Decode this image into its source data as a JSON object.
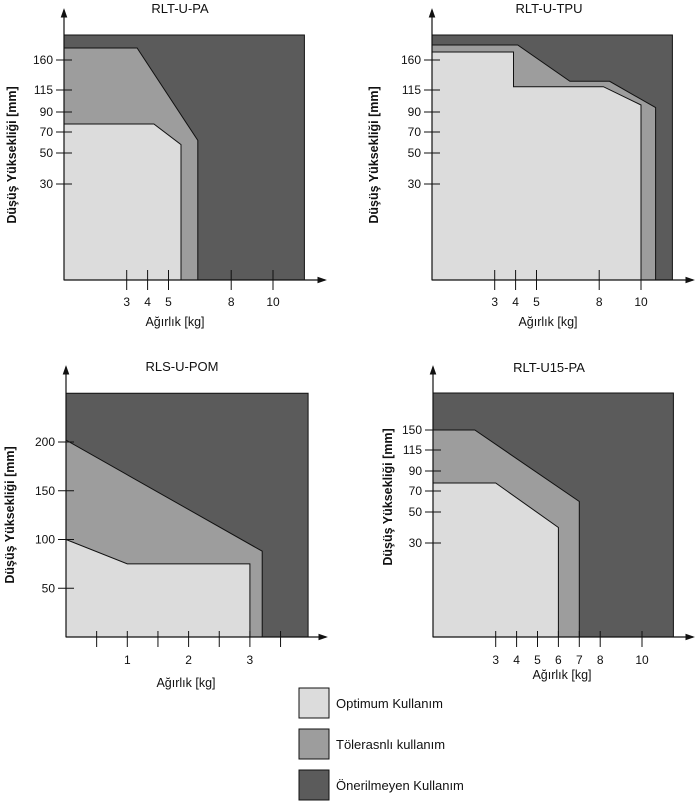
{
  "colors": {
    "optimum": "#dcdcdc",
    "tolerance": "#9d9d9d",
    "not_recommended": "#5b5b5b",
    "line": "#111111"
  },
  "legend": [
    {
      "label": "Optimum Kullanım",
      "zone": "optimum"
    },
    {
      "label": "Tölerasnlı kullanım",
      "zone": "tolerance"
    },
    {
      "label": "Önerilmeyen Kullanım",
      "zone": "not_recommended"
    }
  ],
  "chart_data": [
    {
      "type": "area",
      "title": "RLT-U-PA",
      "xlabel": "Ağırlık [kg]",
      "ylabel": "Düşüş Yüksekliği [mm]",
      "x_ticks": [
        3,
        4,
        5,
        8,
        10
      ],
      "y_ticks": [
        30,
        50,
        70,
        90,
        115,
        160
      ],
      "zones": {
        "optimum": [
          [
            0,
            0
          ],
          [
            0,
            78
          ],
          [
            4.3,
            78
          ],
          [
            5.6,
            58
          ],
          [
            5.6,
            0
          ]
        ],
        "tolerance": [
          [
            0,
            0
          ],
          [
            0,
            172
          ],
          [
            3.5,
            172
          ],
          [
            6.4,
            62
          ],
          [
            6.4,
            0
          ]
        ],
        "not_recommended": [
          [
            0,
            0
          ],
          [
            0,
            185
          ],
          [
            11.5,
            185
          ],
          [
            11.5,
            0
          ]
        ]
      }
    },
    {
      "type": "area",
      "title": "RLT-U-TPU",
      "xlabel": "Ağırlık [kg]",
      "ylabel": "Düşüş Yüksekliği [mm]",
      "x_ticks": [
        3,
        4,
        5,
        8,
        10
      ],
      "y_ticks": [
        30,
        50,
        70,
        90,
        115,
        160
      ],
      "zones": {
        "optimum": [
          [
            0,
            0
          ],
          [
            0,
            168
          ],
          [
            3.9,
            168
          ],
          [
            3.9,
            120
          ],
          [
            8.2,
            120
          ],
          [
            10,
            98
          ],
          [
            10,
            0
          ]
        ],
        "tolerance": [
          [
            0,
            0
          ],
          [
            0,
            175
          ],
          [
            4.1,
            175
          ],
          [
            6.6,
            128
          ],
          [
            8.5,
            128
          ],
          [
            10.7,
            95
          ],
          [
            10.7,
            0
          ]
        ],
        "not_recommended": [
          [
            0,
            0
          ],
          [
            0,
            185
          ],
          [
            11.5,
            185
          ],
          [
            11.5,
            0
          ]
        ]
      }
    },
    {
      "type": "area",
      "title": "RLS-U-POM",
      "xlabel": "Ağırlık [kg]",
      "ylabel": "Düşüş Yüksekliği [mm]",
      "x_ticks": [
        0.5,
        1,
        1.5,
        2,
        2.5,
        3,
        3.5
      ],
      "x_tick_labels": [
        1,
        2,
        3
      ],
      "y_ticks": [
        50,
        100,
        150,
        200
      ],
      "zones": {
        "optimum": [
          [
            0,
            0
          ],
          [
            0,
            100
          ],
          [
            1,
            75
          ],
          [
            3,
            75
          ],
          [
            3,
            0
          ]
        ],
        "tolerance": [
          [
            0,
            0
          ],
          [
            0,
            202
          ],
          [
            3.2,
            88
          ],
          [
            3.2,
            0
          ]
        ],
        "not_recommended": [
          [
            0,
            0
          ],
          [
            0,
            250
          ],
          [
            3.95,
            250
          ],
          [
            3.95,
            0
          ]
        ]
      }
    },
    {
      "type": "area",
      "title": "RLT-U15-PA",
      "xlabel": "Ağırlık [kg]",
      "ylabel": "Düşüş Yüksekliği [mm]",
      "x_ticks": [
        3,
        4,
        5,
        6,
        7,
        8,
        10
      ],
      "y_ticks": [
        30,
        50,
        70,
        90,
        115,
        150
      ],
      "zones": {
        "optimum": [
          [
            0,
            0
          ],
          [
            0,
            78
          ],
          [
            3,
            78
          ],
          [
            6,
            40
          ],
          [
            6,
            0
          ]
        ],
        "tolerance": [
          [
            0,
            0
          ],
          [
            0,
            150
          ],
          [
            2,
            150
          ],
          [
            7,
            60
          ],
          [
            7,
            0
          ]
        ],
        "not_recommended": [
          [
            0,
            0
          ],
          [
            0,
            185
          ],
          [
            11.5,
            185
          ],
          [
            11.5,
            0
          ]
        ]
      }
    }
  ]
}
